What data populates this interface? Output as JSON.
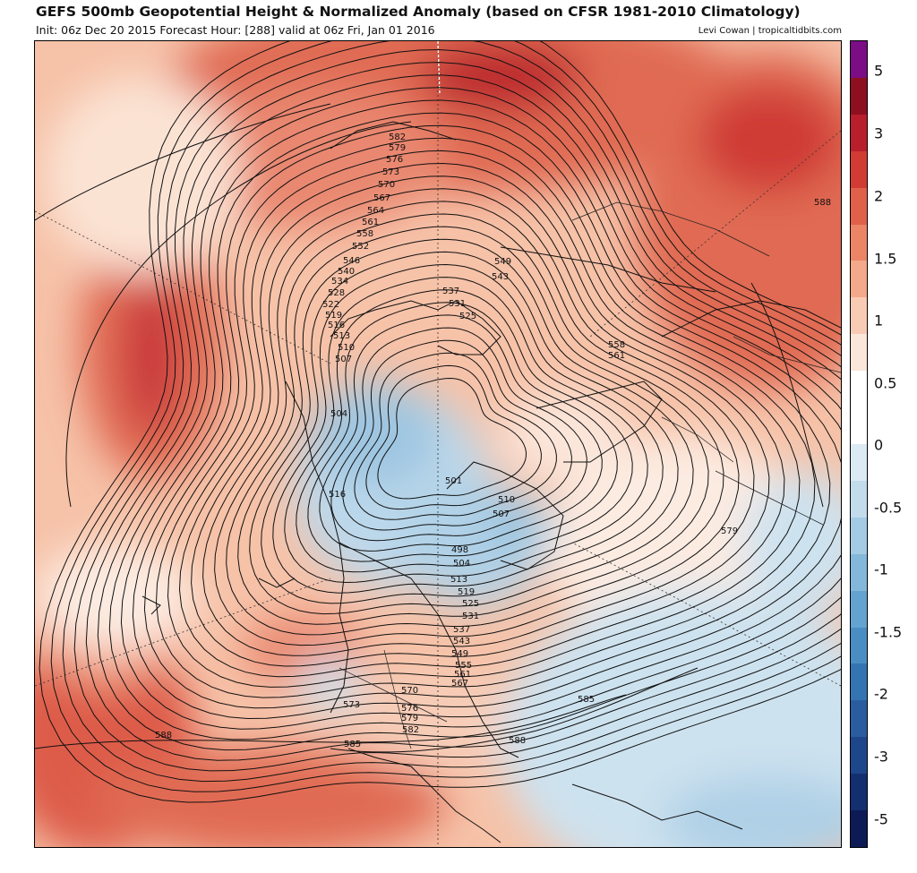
{
  "header": {
    "title": "GEFS 500mb Geopotential Height & Normalized Anomaly (based on CFSR 1981-2010 Climatology)",
    "subtitle": "Init: 06z Dec 20 2015   Forecast Hour: [288]   valid at 06z Fri, Jan 01 2016",
    "credit": "Levi Cowan | tropicaltidbits.com"
  },
  "colorbar": {
    "labels": [
      "5",
      "3",
      "2",
      "1.5",
      "1",
      "0.5",
      "0",
      "-0.5",
      "-1",
      "-1.5",
      "-2",
      "-3",
      "-5"
    ],
    "colors": [
      "#7b0d85",
      "#8e0f20",
      "#b81e2b",
      "#d13b33",
      "#e1604a",
      "#ec8466",
      "#f4a98a",
      "#f9cbb5",
      "#fbe6da",
      "#ffffff",
      "#ffffff",
      "#dceaf3",
      "#c2dcec",
      "#a3cbe3",
      "#84b8da",
      "#64a3d0",
      "#4a8dc3",
      "#3574b2",
      "#2a5d9f",
      "#1e468a",
      "#142f70",
      "#0c1b55"
    ]
  },
  "contours": {
    "labels": [
      "582",
      "579",
      "576",
      "573",
      "570",
      "567",
      "564",
      "561",
      "558",
      "552",
      "546",
      "540",
      "534",
      "528",
      "522",
      "519",
      "516",
      "513",
      "510",
      "507",
      "549",
      "543",
      "537",
      "531",
      "525",
      "504",
      "516",
      "501",
      "510",
      "507",
      "498",
      "504",
      "513",
      "519",
      "525",
      "531",
      "537",
      "543",
      "549",
      "555",
      "561",
      "567",
      "570",
      "573",
      "576",
      "579",
      "582",
      "585",
      "588",
      "588",
      "585",
      "588",
      "558",
      "561",
      "579"
    ]
  }
}
